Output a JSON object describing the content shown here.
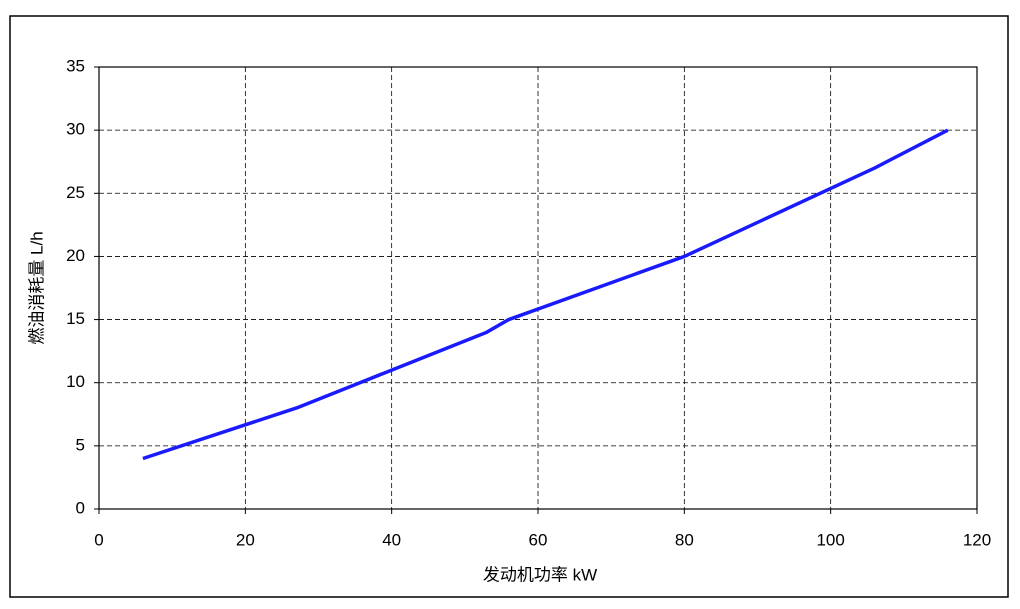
{
  "chart_data": {
    "type": "line",
    "x_label": "发动机功率 kW",
    "y_label": "燃油消耗量 L/h",
    "x": [
      6,
      27,
      40,
      53,
      56,
      80,
      106,
      116
    ],
    "series": [
      {
        "color": "#1a1aff",
        "values": [
          4,
          8,
          11,
          14,
          15,
          20,
          27,
          30
        ]
      }
    ],
    "xlim": [
      0,
      120
    ],
    "xticks": [
      0,
      20,
      40,
      60,
      80,
      100,
      120
    ],
    "ylim": [
      0,
      35
    ],
    "yticks": [
      0,
      5,
      10,
      15,
      20,
      25,
      30,
      35
    ],
    "grid": true
  }
}
